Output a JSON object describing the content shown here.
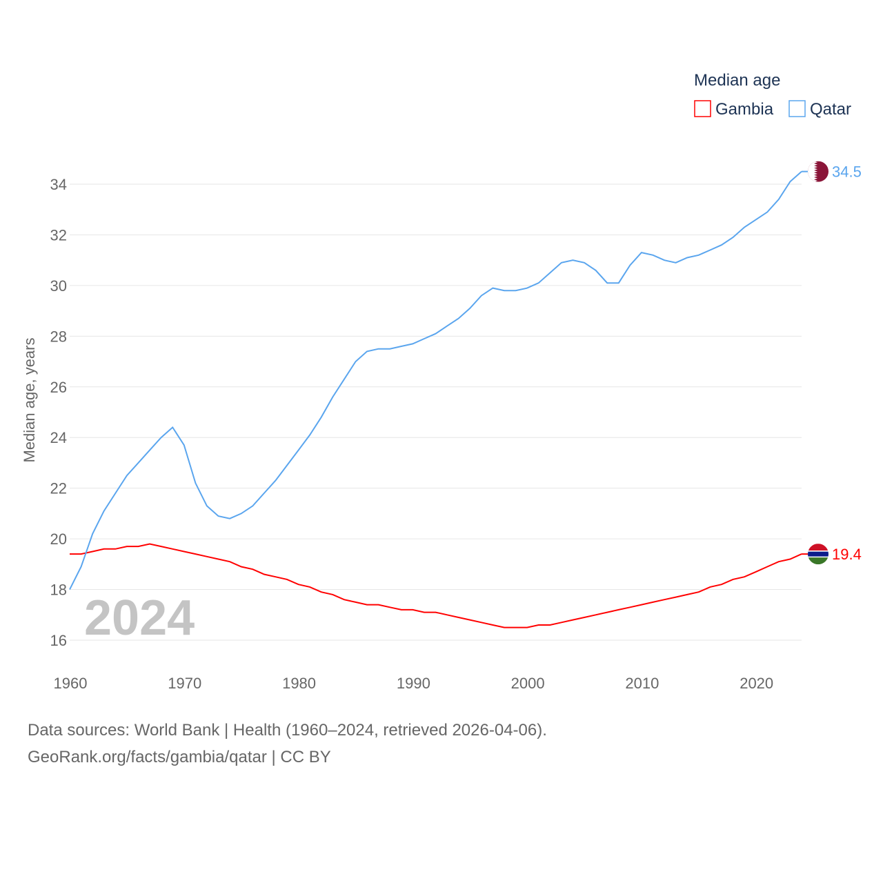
{
  "chart_data": {
    "type": "line",
    "title": "Median age",
    "xlabel": "",
    "ylabel": "Median age, years",
    "xlim": [
      1960,
      2024
    ],
    "ylim": [
      16,
      34
    ],
    "yticks": [
      16,
      18,
      20,
      22,
      24,
      26,
      28,
      30,
      32,
      34
    ],
    "xticks": [
      1960,
      1970,
      1980,
      1990,
      2000,
      2010,
      2020
    ],
    "grid": true,
    "legend_position": "top-right",
    "year_label": "2024",
    "x": [
      1960,
      1961,
      1962,
      1963,
      1964,
      1965,
      1966,
      1967,
      1968,
      1969,
      1970,
      1971,
      1972,
      1973,
      1974,
      1975,
      1976,
      1977,
      1978,
      1979,
      1980,
      1981,
      1982,
      1983,
      1984,
      1985,
      1986,
      1987,
      1988,
      1989,
      1990,
      1991,
      1992,
      1993,
      1994,
      1995,
      1996,
      1997,
      1998,
      1999,
      2000,
      2001,
      2002,
      2003,
      2004,
      2005,
      2006,
      2007,
      2008,
      2009,
      2010,
      2011,
      2012,
      2013,
      2014,
      2015,
      2016,
      2017,
      2018,
      2019,
      2020,
      2021,
      2022,
      2023,
      2024
    ],
    "series": [
      {
        "name": "Gambia",
        "color": "#ff0000",
        "end_label": "19.4",
        "values": [
          19.4,
          19.4,
          19.5,
          19.6,
          19.6,
          19.7,
          19.7,
          19.8,
          19.7,
          19.6,
          19.5,
          19.4,
          19.3,
          19.2,
          19.1,
          18.9,
          18.8,
          18.6,
          18.5,
          18.4,
          18.2,
          18.1,
          17.9,
          17.8,
          17.6,
          17.5,
          17.4,
          17.4,
          17.3,
          17.2,
          17.2,
          17.1,
          17.1,
          17.0,
          16.9,
          16.8,
          16.7,
          16.6,
          16.5,
          16.5,
          16.5,
          16.6,
          16.6,
          16.7,
          16.8,
          16.9,
          17.0,
          17.1,
          17.2,
          17.3,
          17.4,
          17.5,
          17.6,
          17.7,
          17.8,
          17.9,
          18.1,
          18.2,
          18.4,
          18.5,
          18.7,
          18.9,
          19.1,
          19.2,
          19.4
        ]
      },
      {
        "name": "Qatar",
        "color": "#5aa5ee",
        "end_label": "34.5",
        "values": [
          18.0,
          18.9,
          20.2,
          21.1,
          21.8,
          22.5,
          23.0,
          23.5,
          24.0,
          24.4,
          23.7,
          22.2,
          21.3,
          20.9,
          20.8,
          21.0,
          21.3,
          21.8,
          22.3,
          22.9,
          23.5,
          24.1,
          24.8,
          25.6,
          26.3,
          27.0,
          27.4,
          27.5,
          27.5,
          27.6,
          27.7,
          27.9,
          28.1,
          28.4,
          28.7,
          29.1,
          29.6,
          29.9,
          29.8,
          29.8,
          29.9,
          30.1,
          30.5,
          30.9,
          31.0,
          30.9,
          30.6,
          30.1,
          30.1,
          30.8,
          31.3,
          31.2,
          31.0,
          30.9,
          31.1,
          31.2,
          31.4,
          31.6,
          31.9,
          32.3,
          32.6,
          32.9,
          33.4,
          34.1,
          34.5
        ]
      }
    ]
  },
  "footer": {
    "line1": "Data sources: World Bank | Health (1960–2024, retrieved 2026-04-06).",
    "line2": "GeoRank.org/facts/gambia/qatar | CC BY"
  }
}
